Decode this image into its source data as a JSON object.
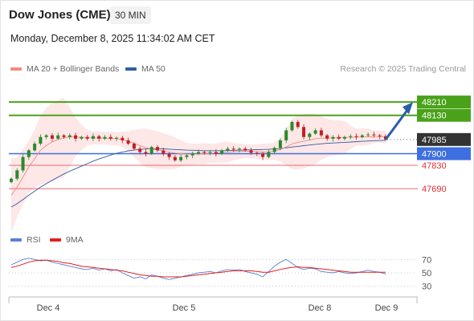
{
  "header": {
    "title": "Dow Jones (CME)",
    "interval": "30 MIN",
    "timestamp": "Monday, December 8, 2025 11:34:02 AM CET"
  },
  "legend": {
    "bollinger": {
      "label": "MA 20 + Bollinger Bands",
      "color": "#f28b82"
    },
    "ma50": {
      "label": "MA 50",
      "color": "#2f5f9e"
    },
    "credit": "Research © 2025 Trading Central"
  },
  "indicator_legend": {
    "rsi": {
      "label": "RSI",
      "color": "#5b7fd6"
    },
    "ma9": {
      "label": "9MA",
      "color": "#e02020"
    }
  },
  "colors": {
    "resistance": "#4aa21a",
    "support_line": "#3d6fe0",
    "support2": "#e56b6b",
    "current": "#333333",
    "arrow": "#2a5ea8"
  },
  "chart_data": [
    {
      "type": "line",
      "name": "price",
      "x_ticks": [
        "Dec 4",
        "Dec 5",
        "Dec 8",
        "Dec 9"
      ],
      "levels": [
        {
          "value": 48210,
          "label": "48210",
          "kind": "resistance"
        },
        {
          "value": 48130,
          "label": "48130",
          "kind": "resistance"
        },
        {
          "value": 47985,
          "label": "47985",
          "kind": "current"
        },
        {
          "value": 47900,
          "label": "47900",
          "kind": "support"
        },
        {
          "value": 47830,
          "label": "47830",
          "kind": "support"
        },
        {
          "value": 47690,
          "label": "47690",
          "kind": "support"
        }
      ],
      "ylim": [
        47450,
        48350
      ],
      "series": [
        {
          "name": "price",
          "values": [
            47750,
            47800,
            47880,
            47920,
            47960,
            48000,
            48010,
            47990,
            48010,
            48000,
            48010,
            47990,
            48000,
            47990,
            48005,
            47990,
            48000,
            47990,
            47995,
            47980,
            47960,
            47930,
            47910,
            47900,
            47940,
            47920,
            47900,
            47880,
            47860,
            47880,
            47890,
            47900,
            47910,
            47905,
            47910,
            47900,
            47920,
            47930,
            47925,
            47930,
            47920,
            47905,
            47900,
            47880,
            47910,
            47935,
            47980,
            48040,
            48090,
            48060,
            48000,
            48020,
            48040,
            48010,
            47990,
            48000,
            47990,
            48000,
            48005,
            48000,
            48010,
            48015,
            48010,
            48005,
            47985
          ]
        },
        {
          "name": "ma20",
          "values": [
            47650,
            47700,
            47760,
            47820,
            47870,
            47920,
            47950,
            47970,
            47985,
            47995,
            48000,
            48000,
            47998,
            47996,
            47995,
            47994,
            47993,
            47992,
            47990,
            47985,
            47975,
            47962,
            47948,
            47935,
            47928,
            47922,
            47916,
            47910,
            47904,
            47900,
            47898,
            47897,
            47898,
            47900,
            47902,
            47904,
            47907,
            47910,
            47912,
            47914,
            47915,
            47914,
            47912,
            47910,
            47911,
            47915,
            47925,
            47940,
            47958,
            47968,
            47975,
            47982,
            47990,
            47993,
            47994,
            47995,
            47996,
            47997,
            47998,
            47999,
            48000,
            48001,
            48002,
            48002,
            48001
          ]
        },
        {
          "name": "ma50",
          "values": [
            47580,
            47600,
            47625,
            47650,
            47675,
            47700,
            47720,
            47740,
            47760,
            47778,
            47795,
            47810,
            47825,
            47840,
            47855,
            47868,
            47880,
            47892,
            47902,
            47910,
            47917,
            47922,
            47926,
            47928,
            47930,
            47930,
            47929,
            47927,
            47925,
            47923,
            47921,
            47920,
            47919,
            47918,
            47918,
            47918,
            47918,
            47919,
            47920,
            47921,
            47922,
            47923,
            47924,
            47925,
            47926,
            47928,
            47931,
            47935,
            47940,
            47944,
            47948,
            47952,
            47956,
            47959,
            47962,
            47964,
            47966,
            47968,
            47970,
            47972,
            47974,
            47976,
            47978,
            47979,
            47980
          ]
        }
      ],
      "projection": {
        "from": 47985,
        "to": 48190
      }
    },
    {
      "type": "line",
      "name": "rsi",
      "y_ticks": [
        70,
        50,
        30
      ],
      "ylim": [
        20,
        80
      ],
      "series": [
        {
          "name": "RSI",
          "values": [
            62,
            66,
            70,
            72,
            70,
            68,
            69,
            66,
            64,
            62,
            60,
            58,
            56,
            55,
            57,
            54,
            56,
            53,
            55,
            50,
            46,
            42,
            44,
            41,
            47,
            45,
            42,
            40,
            42,
            44,
            46,
            48,
            50,
            51,
            52,
            50,
            53,
            55,
            54,
            55,
            52,
            50,
            48,
            44,
            52,
            60,
            66,
            70,
            64,
            58,
            55,
            57,
            56,
            52,
            51,
            50,
            52,
            50,
            49,
            50,
            52,
            54,
            52,
            51,
            48
          ]
        },
        {
          "name": "9MA",
          "values": [
            58,
            60,
            63,
            66,
            68,
            69,
            69,
            68,
            67,
            65,
            64,
            62,
            60,
            59,
            58,
            57,
            56,
            55,
            54,
            53,
            51,
            49,
            47,
            46,
            45,
            45,
            44,
            44,
            44,
            44,
            45,
            46,
            47,
            48,
            49,
            50,
            51,
            52,
            53,
            53,
            53,
            53,
            52,
            51,
            51,
            53,
            55,
            57,
            58,
            59,
            58,
            58,
            57,
            56,
            55,
            54,
            53,
            52,
            51,
            51,
            51,
            51,
            51,
            51,
            51
          ]
        }
      ]
    }
  ]
}
